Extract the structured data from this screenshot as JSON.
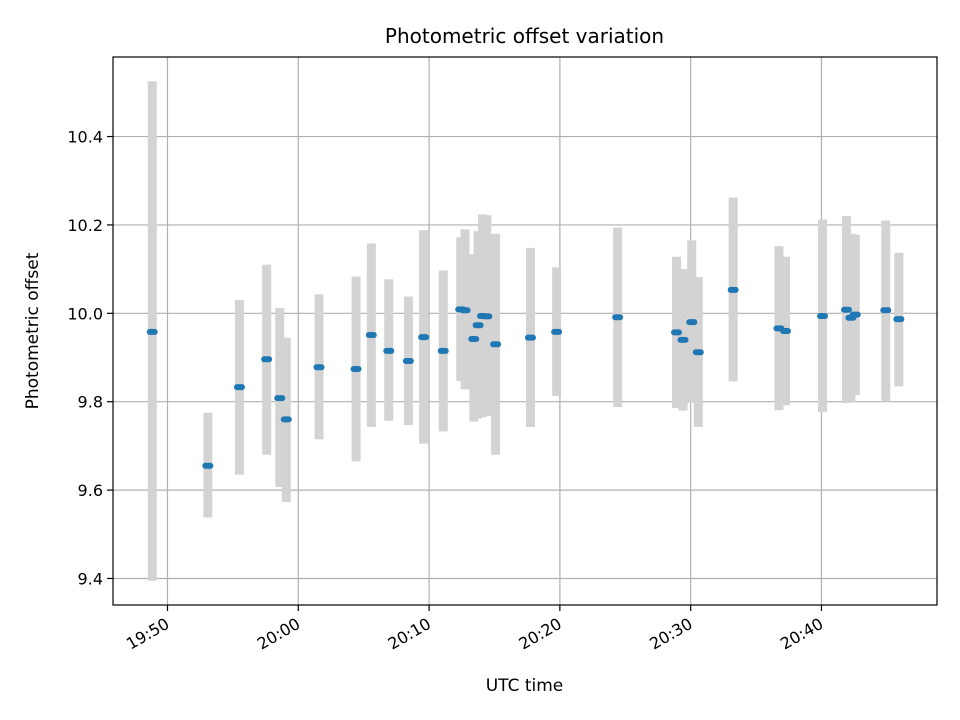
{
  "chart_data": {
    "type": "scatter",
    "title": "Photometric offset variation",
    "xlabel": "UTC time",
    "ylabel": "Photometric offset",
    "x_unit": "UTC HH:MM",
    "xlim": [
      "19:45:50",
      "20:48:50"
    ],
    "ylim": [
      9.34,
      10.58
    ],
    "x_ticks": [
      "19:50",
      "20:00",
      "20:10",
      "20:20",
      "20:30",
      "20:40"
    ],
    "y_ticks": [
      9.4,
      9.6,
      9.8,
      10.0,
      10.2,
      10.4
    ],
    "grid": true,
    "marker_color": "#1f77b4",
    "errorbar_color": "#d3d3d3",
    "series": [
      {
        "points": [
          {
            "t": "19:48:50",
            "y": 9.958,
            "lo": 9.395,
            "hi": 10.525
          },
          {
            "t": "19:53:05",
            "y": 9.655,
            "lo": 9.538,
            "hi": 9.775
          },
          {
            "t": "19:55:30",
            "y": 9.833,
            "lo": 9.635,
            "hi": 10.03
          },
          {
            "t": "19:57:35",
            "y": 9.896,
            "lo": 9.68,
            "hi": 10.11
          },
          {
            "t": "19:58:35",
            "y": 9.808,
            "lo": 9.607,
            "hi": 10.012
          },
          {
            "t": "19:59:05",
            "y": 9.76,
            "lo": 9.573,
            "hi": 9.945
          },
          {
            "t": "20:01:35",
            "y": 9.878,
            "lo": 9.715,
            "hi": 10.043
          },
          {
            "t": "20:04:25",
            "y": 9.874,
            "lo": 9.665,
            "hi": 10.083
          },
          {
            "t": "20:05:35",
            "y": 9.951,
            "lo": 9.743,
            "hi": 10.158
          },
          {
            "t": "20:06:55",
            "y": 9.915,
            "lo": 9.757,
            "hi": 10.077
          },
          {
            "t": "20:08:25",
            "y": 9.892,
            "lo": 9.747,
            "hi": 10.038
          },
          {
            "t": "20:09:35",
            "y": 9.946,
            "lo": 9.705,
            "hi": 10.188
          },
          {
            "t": "20:11:05",
            "y": 9.915,
            "lo": 9.733,
            "hi": 10.097
          },
          {
            "t": "20:12:25",
            "y": 10.009,
            "lo": 9.847,
            "hi": 10.172
          },
          {
            "t": "20:12:45",
            "y": 10.007,
            "lo": 9.828,
            "hi": 10.19
          },
          {
            "t": "20:13:25",
            "y": 9.942,
            "lo": 9.755,
            "hi": 10.134
          },
          {
            "t": "20:13:45",
            "y": 9.973,
            "lo": 9.762,
            "hi": 10.186
          },
          {
            "t": "20:14:05",
            "y": 9.994,
            "lo": 9.765,
            "hi": 10.224
          },
          {
            "t": "20:14:25",
            "y": 9.993,
            "lo": 9.768,
            "hi": 10.222
          },
          {
            "t": "20:15:05",
            "y": 9.93,
            "lo": 9.68,
            "hi": 10.18
          },
          {
            "t": "20:17:45",
            "y": 9.945,
            "lo": 9.743,
            "hi": 10.148
          },
          {
            "t": "20:19:45",
            "y": 9.958,
            "lo": 9.813,
            "hi": 10.104
          },
          {
            "t": "20:24:25",
            "y": 9.991,
            "lo": 9.788,
            "hi": 10.194
          },
          {
            "t": "20:28:55",
            "y": 9.957,
            "lo": 9.786,
            "hi": 10.128
          },
          {
            "t": "20:29:25",
            "y": 9.94,
            "lo": 9.78,
            "hi": 10.1
          },
          {
            "t": "20:30:05",
            "y": 9.98,
            "lo": 9.797,
            "hi": 10.165
          },
          {
            "t": "20:30:35",
            "y": 9.912,
            "lo": 9.743,
            "hi": 10.082
          },
          {
            "t": "20:33:15",
            "y": 10.053,
            "lo": 9.846,
            "hi": 10.262
          },
          {
            "t": "20:36:45",
            "y": 9.966,
            "lo": 9.781,
            "hi": 10.152
          },
          {
            "t": "20:37:15",
            "y": 9.96,
            "lo": 9.792,
            "hi": 10.128
          },
          {
            "t": "20:40:05",
            "y": 9.994,
            "lo": 9.777,
            "hi": 10.212
          },
          {
            "t": "20:41:55",
            "y": 10.008,
            "lo": 9.797,
            "hi": 10.22
          },
          {
            "t": "20:42:15",
            "y": 9.99,
            "lo": 9.8,
            "hi": 10.18
          },
          {
            "t": "20:42:35",
            "y": 9.997,
            "lo": 9.815,
            "hi": 10.178
          },
          {
            "t": "20:44:55",
            "y": 10.007,
            "lo": 9.8,
            "hi": 10.21
          },
          {
            "t": "20:45:55",
            "y": 9.987,
            "lo": 9.835,
            "hi": 10.137
          }
        ]
      }
    ]
  }
}
